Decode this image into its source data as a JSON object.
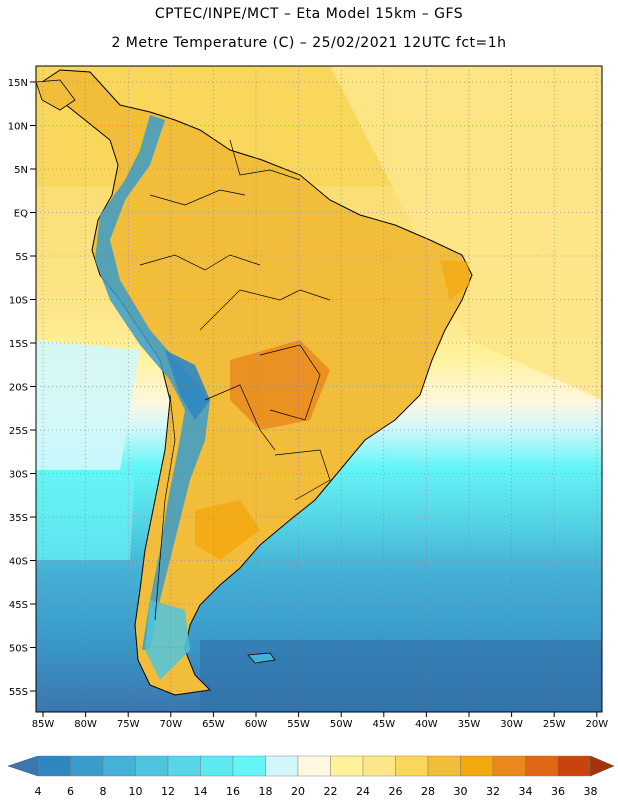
{
  "header": {
    "line1": "CPTEC/INPE/MCT –  Eta Model 15km – GFS",
    "line2": "2 Metre Temperature (C) – 25/02/2021 12UTC fct=1h"
  },
  "map": {
    "lat_labels": [
      "15N",
      "10N",
      "5N",
      "EQ",
      "5S",
      "10S",
      "15S",
      "20S",
      "25S",
      "30S",
      "35S",
      "40S",
      "45S",
      "50S",
      "55S"
    ],
    "lon_labels": [
      "85W",
      "80W",
      "75W",
      "70W",
      "65W",
      "60W",
      "55W",
      "50W",
      "45W",
      "40W",
      "35W",
      "30W",
      "25W",
      "20W"
    ]
  },
  "colorbar": {
    "ticks": [
      "4",
      "6",
      "8",
      "10",
      "12",
      "14",
      "16",
      "18",
      "20",
      "22",
      "24",
      "26",
      "28",
      "30",
      "32",
      "34",
      "36",
      "38"
    ],
    "colors": [
      "#3a76b0",
      "#2f87c1",
      "#3a9ccc",
      "#45b1d6",
      "#50c4de",
      "#56d6e6",
      "#5ee8ef",
      "#66f5f7",
      "#d2f7fb",
      "#fff7e0",
      "#fff29a",
      "#fde68a",
      "#f9d65c",
      "#f2bd3a",
      "#f2a80e",
      "#ea8a1e",
      "#e06715",
      "#c9440c",
      "#a83208"
    ]
  }
}
